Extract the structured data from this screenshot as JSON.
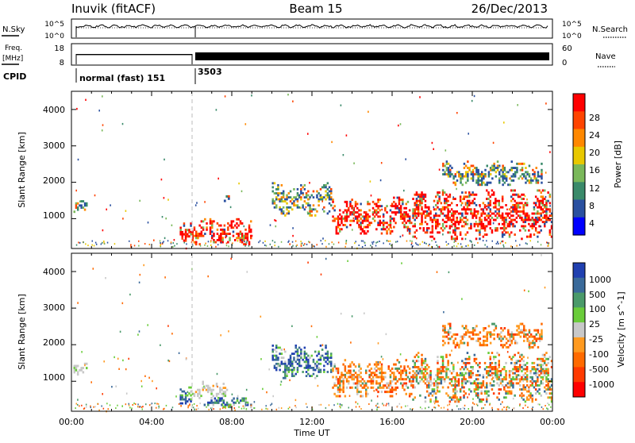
{
  "header": {
    "station": "Inuvik (fitACF)",
    "beam": "Beam 15",
    "date": "26/Dec/2013"
  },
  "noise_panel": {
    "left_label": "N.Sky",
    "right_label": "N.Search",
    "left_ticks": [
      "10^5",
      "10^0"
    ],
    "right_ticks": [
      "10^5",
      "10^0"
    ]
  },
  "freq_panel": {
    "left_label_line1": "Freq.",
    "left_label_line2": "[MHz]",
    "right_label": "Nave",
    "left_ticks": [
      "18",
      "8"
    ],
    "right_ticks": [
      "60",
      "0"
    ]
  },
  "cpid": {
    "label": "CPID",
    "segments": [
      {
        "name": "normal (fast) 151",
        "start_hour": 0.0,
        "end_hour": 6.0
      },
      {
        "name": "3503",
        "start_hour": 6.0,
        "end_hour": 24.0
      }
    ]
  },
  "power_colorbar": {
    "label": "Power [dB]",
    "ticks": [
      "28",
      "24",
      "20",
      "16",
      "12",
      "8",
      "4"
    ],
    "colors": [
      "#ff0000",
      "#ff4400",
      "#ff8800",
      "#e8c800",
      "#7ab85a",
      "#3a8a6a",
      "#2a50a0",
      "#0000ff"
    ]
  },
  "velocity_colorbar": {
    "label": "Velocity [m s^-1]",
    "ticks": [
      "1000",
      "500",
      "100",
      "25",
      "-25",
      "-100",
      "-500",
      "-1000"
    ],
    "colors": [
      "#2040b0",
      "#3a6a9a",
      "#4a9a6a",
      "#6acc3a",
      "#c8c8c8",
      "#ff9a20",
      "#ff6a00",
      "#ff3a00",
      "#ff0000"
    ]
  },
  "axes": {
    "ylabel": "Slant Range [km]",
    "xlabel": "Time UT",
    "y_ticks": [
      "1000",
      "2000",
      "3000",
      "4000"
    ],
    "x_ticks": [
      "00:00",
      "04:00",
      "08:00",
      "12:00",
      "16:00",
      "20:00",
      "00:00"
    ]
  },
  "chart_data": [
    {
      "type": "heatmap",
      "title": "Inuvik (fitACF)",
      "ylabel": "Slant Range [km]",
      "xlabel": "Time UT",
      "xlim_hours": [
        0,
        24
      ],
      "ylim": [
        180,
        4500
      ],
      "colorbar": "Power [dB]",
      "regions": [
        {
          "x": [
            0.1,
            0.8
          ],
          "y": [
            1150,
            1500
          ],
          "level": "mixed"
        },
        {
          "x": [
            5.4,
            6.0
          ],
          "y": [
            350,
            1000
          ],
          "level": "high"
        },
        {
          "x": [
            6.0,
            9.0
          ],
          "y": [
            250,
            1000
          ],
          "level": "high"
        },
        {
          "x": [
            7.6,
            7.9
          ],
          "y": [
            1450,
            1700
          ],
          "level": "mixed"
        },
        {
          "x": [
            10.0,
            13.0
          ],
          "y": [
            1050,
            2000
          ],
          "level": "mixed"
        },
        {
          "x": [
            13.0,
            17.0
          ],
          "y": [
            550,
            1600
          ],
          "level": "high"
        },
        {
          "x": [
            17.0,
            24.0
          ],
          "y": [
            400,
            1800
          ],
          "level": "high"
        },
        {
          "x": [
            18.5,
            23.5
          ],
          "y": [
            1900,
            2600
          ],
          "level": "mixed"
        }
      ]
    },
    {
      "type": "heatmap",
      "ylabel": "Slant Range [km]",
      "xlabel": "Time UT",
      "xlim_hours": [
        0,
        24
      ],
      "ylim": [
        180,
        4500
      ],
      "colorbar": "Velocity [m s^-1]",
      "regions": [
        {
          "x": [
            0.1,
            0.8
          ],
          "y": [
            1150,
            1500
          ],
          "level": "ground"
        },
        {
          "x": [
            5.4,
            6.0
          ],
          "y": [
            350,
            900
          ],
          "level": "positive"
        },
        {
          "x": [
            6.0,
            7.8
          ],
          "y": [
            500,
            1000
          ],
          "level": "ground"
        },
        {
          "x": [
            6.6,
            9.0
          ],
          "y": [
            250,
            600
          ],
          "level": "positive"
        },
        {
          "x": [
            10.0,
            13.0
          ],
          "y": [
            1050,
            2000
          ],
          "level": "positive"
        },
        {
          "x": [
            13.0,
            17.0
          ],
          "y": [
            550,
            1600
          ],
          "level": "negative"
        },
        {
          "x": [
            17.0,
            24.0
          ],
          "y": [
            400,
            1800
          ],
          "level": "mixed"
        },
        {
          "x": [
            18.5,
            23.5
          ],
          "y": [
            1900,
            2600
          ],
          "level": "negative"
        }
      ]
    }
  ]
}
